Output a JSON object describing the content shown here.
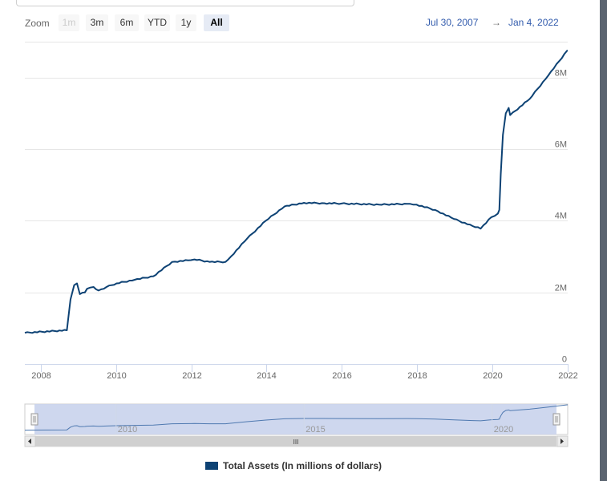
{
  "range_selector": {
    "zoom_label": "Zoom",
    "buttons": [
      {
        "label": "1m",
        "state": "disabled"
      },
      {
        "label": "3m",
        "state": "normal"
      },
      {
        "label": "6m",
        "state": "normal"
      },
      {
        "label": "YTD",
        "state": "normal"
      },
      {
        "label": "1y",
        "state": "normal"
      },
      {
        "label": "All",
        "state": "active"
      }
    ],
    "from_date": "Jul 30, 2007",
    "arrow": "→",
    "to_date": "Jan 4, 2022"
  },
  "navigator": {
    "labels": [
      "2010",
      "2015",
      "2020"
    ],
    "scrollbar_grip": "III"
  },
  "legend": {
    "label": "Total Assets (In millions of dollars)"
  },
  "colors": {
    "series": "#0d4274",
    "navigator_fill": "#c9d3ec",
    "scrollbar": "#d0d0d0"
  },
  "chart_data": {
    "type": "line",
    "title": "",
    "xlabel": "",
    "ylabel": "",
    "x_ticks": [
      "2008",
      "2010",
      "2012",
      "2014",
      "2016",
      "2018",
      "2020",
      "2022"
    ],
    "y_ticks": [
      "0",
      "2M",
      "4M",
      "6M",
      "8M"
    ],
    "xlim": [
      "2007-07-30",
      "2022-01-04"
    ],
    "ylim": [
      0,
      9000000
    ],
    "grid": true,
    "series": [
      {
        "name": "Total Assets (In millions of dollars)",
        "x": [
          "2007-07-30",
          "2008-09-10",
          "2008-10-15",
          "2008-11-20",
          "2008-12-17",
          "2009-01-14",
          "2009-03-04",
          "2009-03-25",
          "2009-05-27",
          "2009-07-15",
          "2009-09-30",
          "2010-01-06",
          "2010-06-30",
          "2010-12-29",
          "2011-06-29",
          "2011-12-28",
          "2012-02-01",
          "2012-06-27",
          "2012-11-28",
          "2012-12-26",
          "2013-06-26",
          "2013-12-25",
          "2014-06-25",
          "2014-12-31",
          "2015-06-24",
          "2015-12-30",
          "2016-12-28",
          "2017-09-27",
          "2017-12-27",
          "2018-06-27",
          "2018-12-26",
          "2019-06-26",
          "2019-09-11",
          "2019-12-25",
          "2020-02-26",
          "2020-03-11",
          "2020-03-25",
          "2020-04-15",
          "2020-05-13",
          "2020-06-10",
          "2020-06-24",
          "2020-12-30",
          "2021-06-30",
          "2021-12-29",
          "2022-01-04"
        ],
        "y": [
          870000,
          940000,
          1800000,
          2200000,
          2250000,
          1950000,
          2000000,
          2100000,
          2150000,
          2050000,
          2150000,
          2250000,
          2350000,
          2450000,
          2850000,
          2900000,
          2920000,
          2850000,
          2850000,
          2920000,
          3500000,
          4000000,
          4400000,
          4500000,
          4490000,
          4480000,
          4450000,
          4470000,
          4450000,
          4300000,
          4050000,
          3850000,
          3780000,
          4100000,
          4200000,
          4300000,
          5300000,
          6400000,
          7000000,
          7150000,
          6950000,
          7400000,
          8060000,
          8750000,
          8750000
        ]
      }
    ]
  }
}
